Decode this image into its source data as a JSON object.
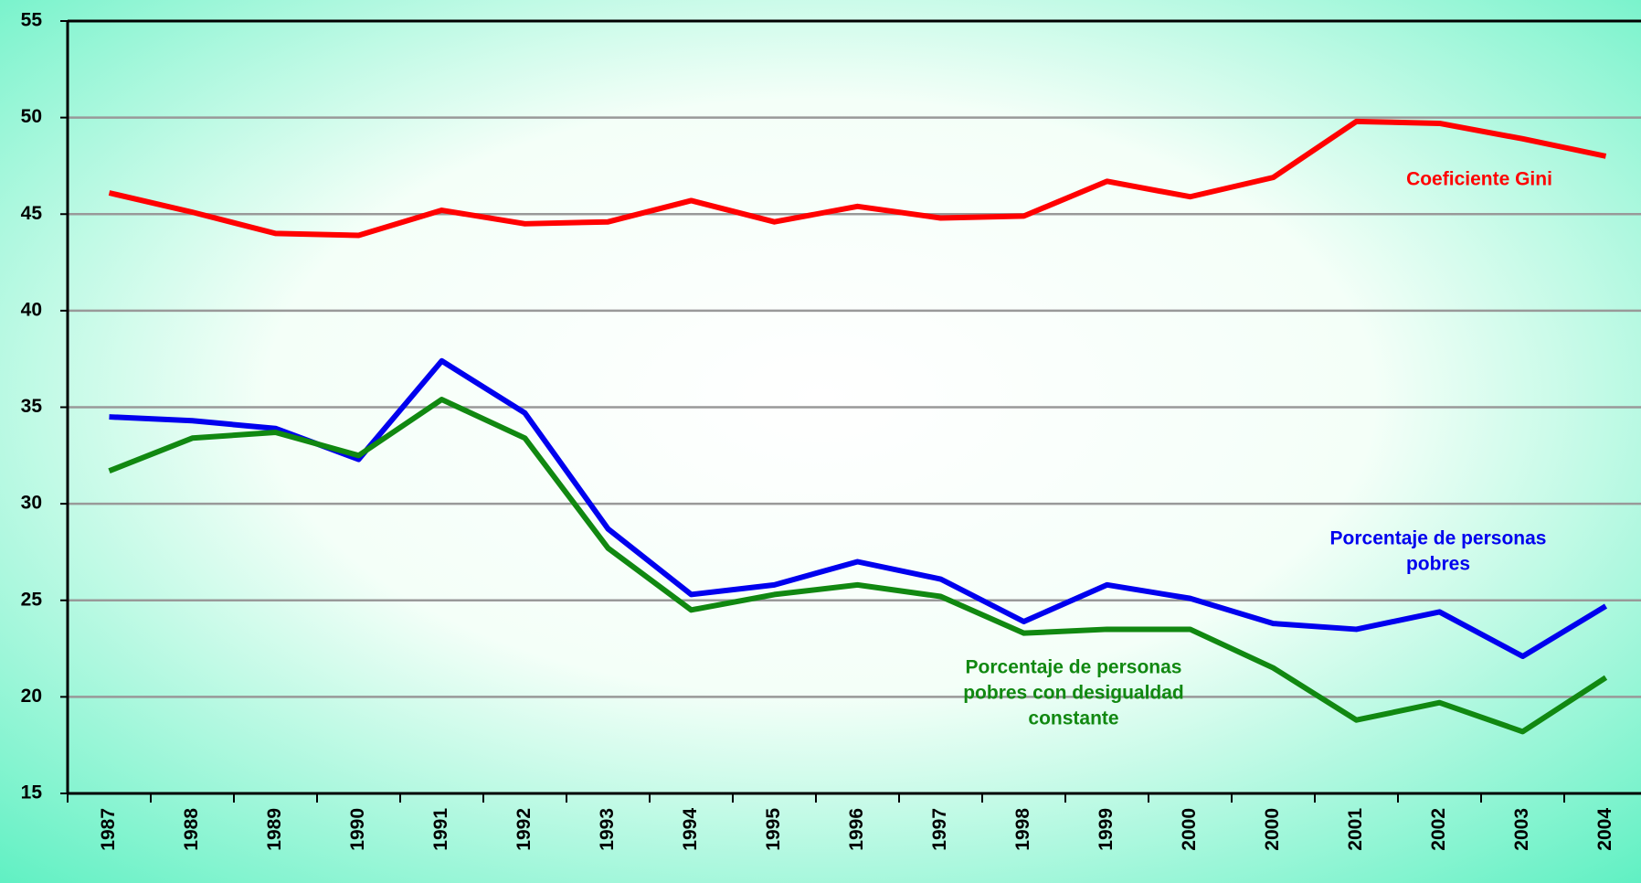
{
  "chart_data": {
    "type": "line",
    "categories": [
      "1987",
      "1988",
      "1989",
      "1990",
      "1991",
      "1992",
      "1993",
      "1994",
      "1995",
      "1996",
      "1997",
      "1998",
      "1999",
      "2000",
      "2000",
      "2001",
      "2002",
      "2003",
      "2004"
    ],
    "series": [
      {
        "name": "Coeficiente Gini",
        "color": "#ff0000",
        "values": [
          46.1,
          45.1,
          44.0,
          43.9,
          45.2,
          44.5,
          44.6,
          45.7,
          44.6,
          45.4,
          44.8,
          44.9,
          46.7,
          45.9,
          46.9,
          49.8,
          49.7,
          48.9,
          48.0
        ]
      },
      {
        "name": "Porcentaje de personas pobres",
        "color": "#0000ee",
        "values": [
          34.5,
          34.3,
          33.9,
          32.3,
          37.4,
          34.7,
          28.7,
          25.3,
          25.8,
          27.0,
          26.1,
          23.9,
          25.8,
          25.1,
          23.8,
          23.5,
          24.4,
          22.1,
          24.7
        ]
      },
      {
        "name": "Porcentaje de personas pobres con desigualdad constante",
        "color": "#118811",
        "values": [
          31.7,
          33.4,
          33.7,
          32.5,
          35.4,
          33.4,
          27.7,
          24.5,
          25.3,
          25.8,
          25.2,
          23.3,
          23.5,
          23.5,
          21.5,
          18.8,
          19.7,
          18.2,
          21.0
        ]
      }
    ],
    "annotations": [
      {
        "lines": [
          "Coeficiente Gini"
        ],
        "color": "#ff0000"
      },
      {
        "lines": [
          "Porcentaje de personas",
          "pobres"
        ],
        "color": "#0000ee"
      },
      {
        "lines": [
          "Porcentaje de personas",
          "pobres con desigualdad",
          "constante"
        ],
        "color": "#118811"
      }
    ],
    "ylim": [
      15,
      55
    ],
    "yticks": [
      15,
      20,
      25,
      30,
      35,
      40,
      45,
      50,
      55
    ],
    "grid": true
  }
}
